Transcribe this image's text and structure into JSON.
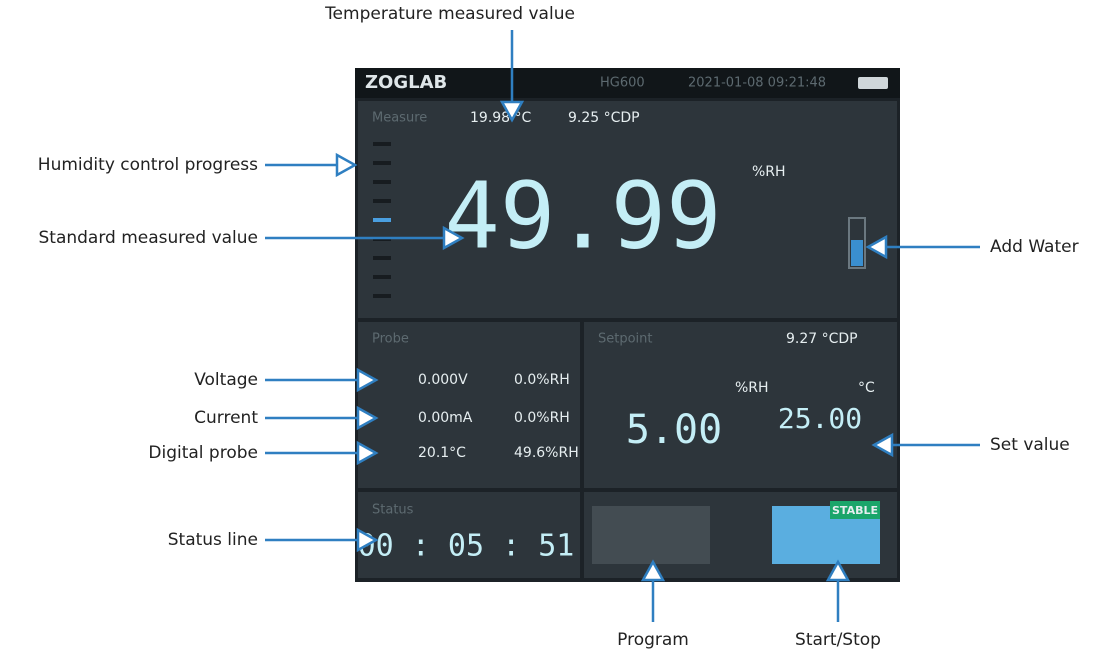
{
  "annotations": {
    "temperature": "Temperature measured value",
    "progress": "Humidity control progress",
    "standard": "Standard measured value",
    "water": "Add Water",
    "voltage": "Voltage",
    "current": "Current",
    "digital": "Digital probe",
    "set_value": "Set value",
    "status_line": "Status line",
    "program": "Program",
    "start_stop": "Start/Stop"
  },
  "screen": {
    "header": {
      "brand": "ZOGLAB",
      "model": "HG600",
      "datetime": "2021-01-08 09:21:48"
    },
    "measure": {
      "label": "Measure",
      "temperature": "19.98 °C",
      "dew_point": "9.25 °CDP",
      "humidity": "49.99",
      "unit": "%RH"
    },
    "probe": {
      "label": "Probe",
      "rows": [
        [
          "0.000V",
          "0.0%RH"
        ],
        [
          "0.00mA",
          "0.0%RH"
        ],
        [
          "20.1°C",
          "49.6%RH"
        ]
      ]
    },
    "setpoint": {
      "label": "Setpoint",
      "dew_point": "9.27 °CDP",
      "humidity_unit": "%RH",
      "temperature_unit": "°C",
      "humidity": "5.00",
      "temperature": "25.00"
    },
    "status": {
      "label": "Status",
      "state": "STABLE",
      "timer": "00 : 05 : 51"
    }
  }
}
